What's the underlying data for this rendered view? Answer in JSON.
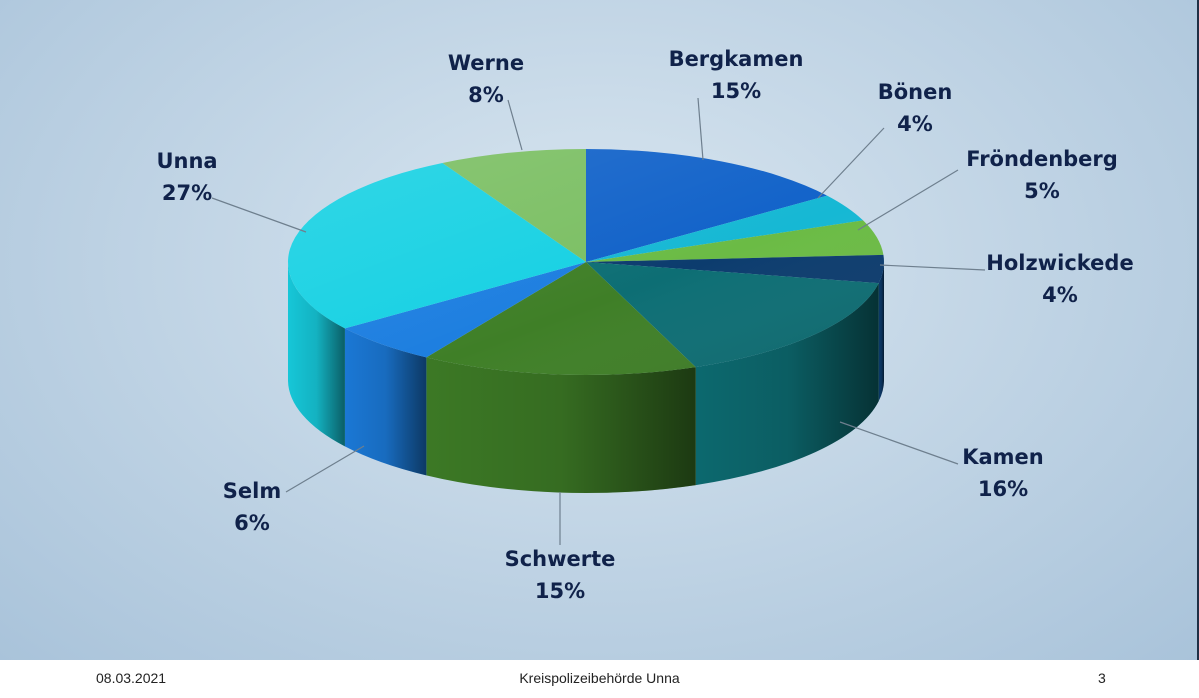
{
  "chart_data": {
    "type": "pie",
    "categories": [
      "Bergkamen",
      "Bönen",
      "Fröndenberg",
      "Holzwickede",
      "Kamen",
      "Schwerte",
      "Selm",
      "Unna",
      "Werne"
    ],
    "values": [
      15,
      4,
      5,
      4,
      16,
      15,
      6,
      27,
      8
    ],
    "labels": [
      "15%",
      "4%",
      "5%",
      "4%",
      "16%",
      "15%",
      "6%",
      "27%",
      "8%"
    ],
    "colors": [
      "#1162c9",
      "#16b8d4",
      "#6bbb45",
      "#0c3c6e",
      "#0d6e74",
      "#3f7f27",
      "#1c7ee0",
      "#17d1e3",
      "#7bbf63"
    ],
    "legend": "none"
  },
  "footer": {
    "date": "08.03.2021",
    "organization": "Kreispolizeibehörde Unna",
    "page_number": "3"
  }
}
